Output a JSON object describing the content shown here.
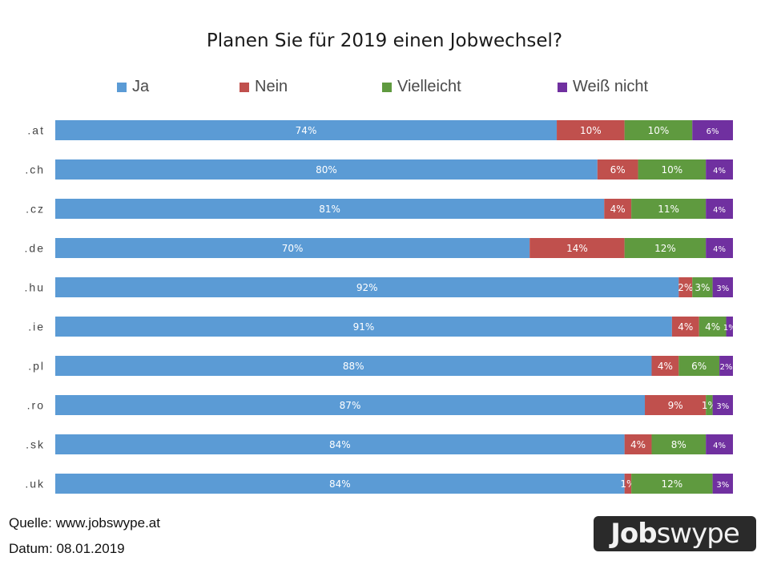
{
  "chart_data": {
    "type": "bar",
    "orientation": "horizontal",
    "stacked": "percent",
    "title": "Planen Sie für 2019 einen Jobwechsel?",
    "xlabel": "",
    "ylabel": "",
    "xlim": [
      0,
      100
    ],
    "grid": false,
    "legend_position": "top",
    "categories": [
      ".at",
      ".ch",
      ".cz",
      ".de",
      ".hu",
      ".ie",
      ".pl",
      ".ro",
      ".sk",
      ".uk"
    ],
    "series": [
      {
        "name": "Ja",
        "color": "#5b9bd5",
        "values": [
          74,
          80,
          81,
          70,
          92,
          91,
          88,
          87,
          84,
          84
        ]
      },
      {
        "name": "Nein",
        "color": "#c0504d",
        "values": [
          10,
          6,
          4,
          14,
          2,
          4,
          4,
          9,
          4,
          1
        ]
      },
      {
        "name": "Vielleicht",
        "color": "#5f9a3f",
        "values": [
          10,
          10,
          11,
          12,
          3,
          4,
          6,
          1,
          8,
          12
        ]
      },
      {
        "name": "Weiß nicht",
        "color": "#7030a0",
        "values": [
          6,
          4,
          4,
          4,
          3,
          1,
          2,
          3,
          4,
          3
        ]
      }
    ],
    "value_suffix": "%"
  },
  "footer": {
    "source": "Quelle: www.jobswype.at",
    "date": "Datum: 08.01.2019"
  },
  "logo": {
    "bold_part": "Job",
    "light_part": "swype"
  }
}
